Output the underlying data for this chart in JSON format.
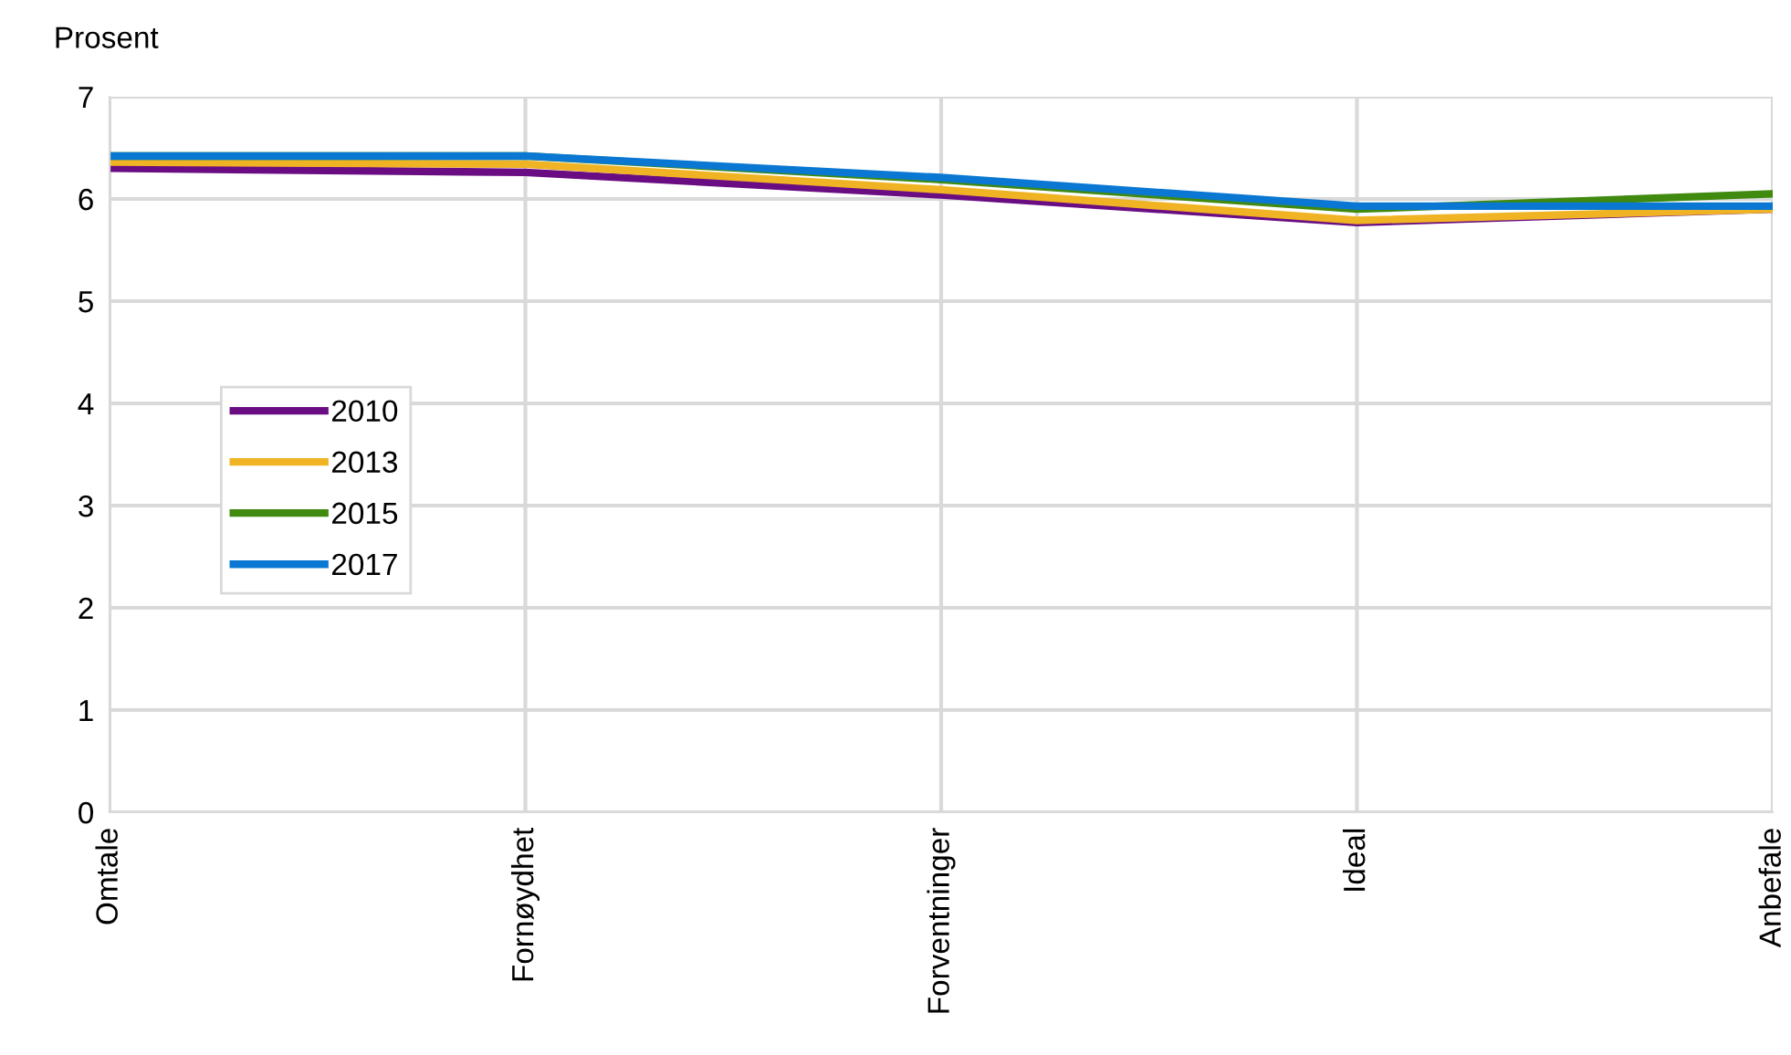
{
  "chart_data": {
    "type": "line",
    "ylabel": "Prosent",
    "categories": [
      "Omtale",
      "Fornøydhet",
      "Forventninger",
      "Ideal",
      "Anbefale"
    ],
    "series": [
      {
        "name": "2010",
        "color": "#6a0d83",
        "values": [
          6.3,
          6.26,
          6.04,
          5.77,
          5.9
        ]
      },
      {
        "name": "2013",
        "color": "#f0b323",
        "values": [
          6.36,
          6.34,
          6.09,
          5.79,
          5.9
        ]
      },
      {
        "name": "2015",
        "color": "#3f8a0f",
        "values": [
          6.42,
          6.42,
          6.19,
          5.9,
          6.05
        ]
      },
      {
        "name": "2017",
        "color": "#0a78d2",
        "values": [
          6.42,
          6.42,
          6.21,
          5.93,
          5.93
        ]
      }
    ],
    "ylim": [
      0,
      7
    ],
    "yticks": [
      0,
      1,
      2,
      3,
      4,
      5,
      6,
      7
    ],
    "grid": true,
    "legend": "left",
    "marker": "none",
    "line_style": "solid"
  }
}
